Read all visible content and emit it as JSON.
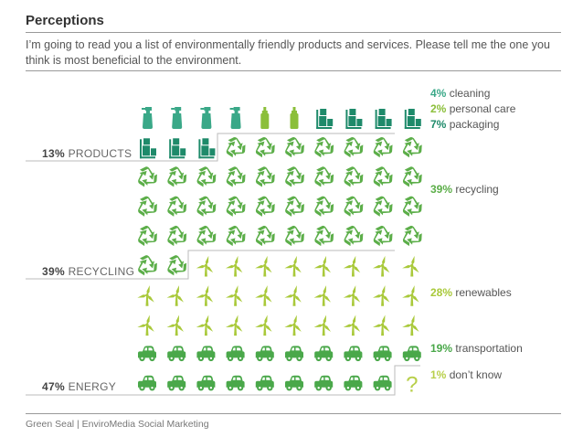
{
  "title": "Perceptions",
  "question": "I’m going to read you a list of environmentally friendly products and services. Please tell me the one you think is most beneficial to the environment.",
  "footer": "Green Seal  |  EnviroMedia Social Marketing",
  "colors": {
    "cleaning": "#3aa888",
    "personal_care": "#8bbf3a",
    "packaging": "#1e8a6a",
    "recycling": "#5cae49",
    "renewables": "#a9c93a",
    "transportation": "#4aa84a",
    "dont_know": "#b8cf4a",
    "divider": "#bbbbbb"
  },
  "chart_data": {
    "type": "table",
    "grid": {
      "columns": 10,
      "rows": 10
    },
    "groups": [
      {
        "name": "PRODUCTS",
        "percent": "13%"
      },
      {
        "name": "RECYCLING",
        "percent": "39%"
      },
      {
        "name": "ENERGY",
        "percent": "47%"
      }
    ],
    "categories": [
      {
        "key": "cleaning",
        "label": "cleaning",
        "percent": "4%",
        "value": 4,
        "icon": "spray-bottle-icon"
      },
      {
        "key": "personal_care",
        "label": "personal care",
        "percent": "2%",
        "value": 2,
        "icon": "lotion-bottle-icon"
      },
      {
        "key": "packaging",
        "label": "packaging",
        "percent": "7%",
        "value": 7,
        "icon": "boxes-icon"
      },
      {
        "key": "recycling",
        "label": "recycling",
        "percent": "39%",
        "value": 39,
        "icon": "recycle-icon"
      },
      {
        "key": "renewables",
        "label": "renewables",
        "percent": "28%",
        "value": 28,
        "icon": "wind-turbine-icon"
      },
      {
        "key": "transportation",
        "label": "transportation",
        "percent": "19%",
        "value": 19,
        "icon": "car-icon"
      },
      {
        "key": "dont_know",
        "label": "don’t know",
        "percent": "1%",
        "value": 1,
        "icon": "question-mark-icon"
      }
    ]
  }
}
